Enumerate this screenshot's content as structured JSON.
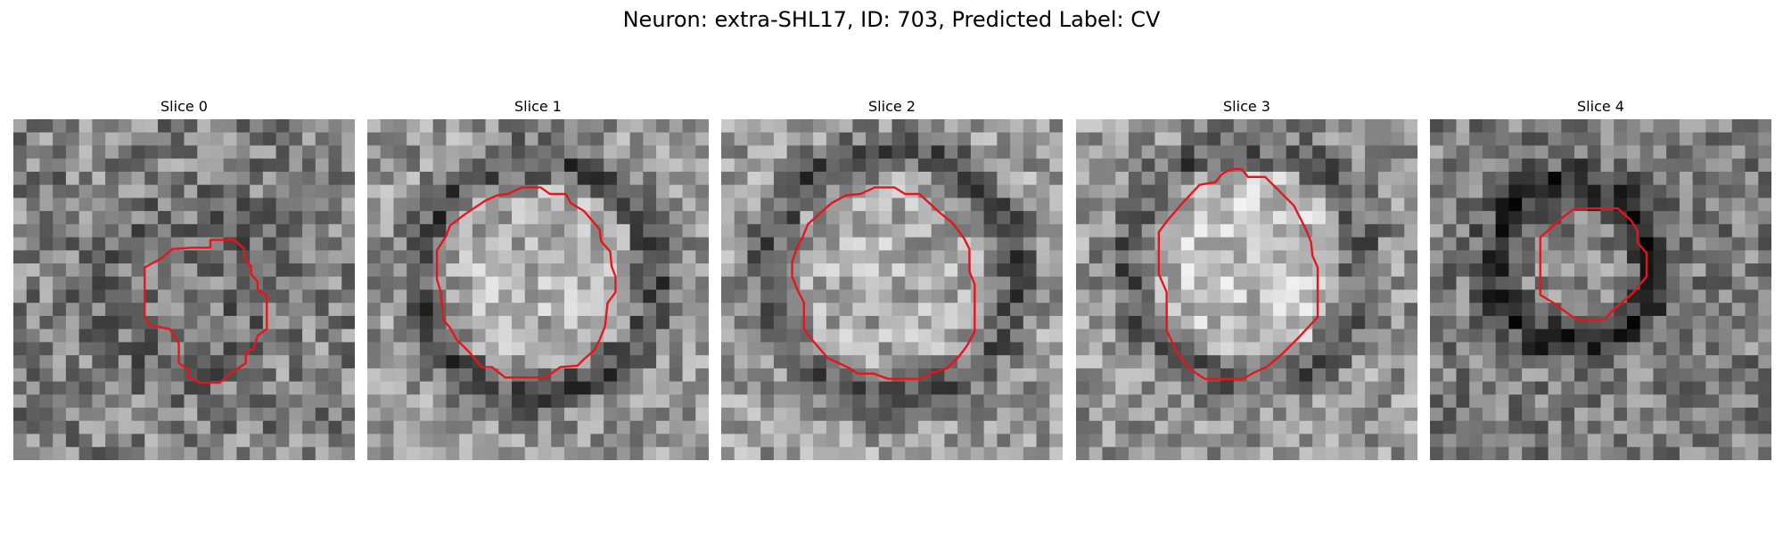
{
  "figure": {
    "title": "Neuron: extra-SHL17, ID: 703, Predicted Label: CV"
  },
  "panels": [
    {
      "title": "Slice 0",
      "contour": [
        [
          150,
          98
        ],
        [
          150,
          92
        ],
        [
          168,
          92
        ],
        [
          176,
          99
        ],
        [
          176,
          106
        ],
        [
          181,
          112
        ],
        [
          181,
          118
        ],
        [
          186,
          124
        ],
        [
          186,
          130
        ],
        [
          193,
          134
        ],
        [
          193,
          160
        ],
        [
          186,
          165
        ],
        [
          183,
          175
        ],
        [
          177,
          178
        ],
        [
          177,
          186
        ],
        [
          165,
          194
        ],
        [
          157,
          201
        ],
        [
          142,
          201
        ],
        [
          133,
          196
        ],
        [
          133,
          191
        ],
        [
          126,
          186
        ],
        [
          126,
          171
        ],
        [
          119,
          160
        ],
        [
          104,
          157
        ],
        [
          100,
          151
        ],
        [
          100,
          113
        ],
        [
          113,
          106
        ],
        [
          121,
          99
        ],
        [
          136,
          98
        ]
      ]
    },
    {
      "title": "Slice 1",
      "contour": [
        [
          107,
          57
        ],
        [
          118,
          52
        ],
        [
          132,
          52
        ],
        [
          139,
          57
        ],
        [
          151,
          57
        ],
        [
          155,
          64
        ],
        [
          165,
          70
        ],
        [
          177,
          84
        ],
        [
          178,
          93
        ],
        [
          185,
          101
        ],
        [
          186,
          112
        ],
        [
          189,
          120
        ],
        [
          189,
          132
        ],
        [
          183,
          140
        ],
        [
          181,
          158
        ],
        [
          177,
          168
        ],
        [
          173,
          176
        ],
        [
          165,
          183
        ],
        [
          160,
          188
        ],
        [
          147,
          189
        ],
        [
          136,
          197
        ],
        [
          105,
          197
        ],
        [
          95,
          189
        ],
        [
          87,
          189
        ],
        [
          78,
          178
        ],
        [
          68,
          168
        ],
        [
          63,
          159
        ],
        [
          58,
          153
        ],
        [
          56,
          132
        ],
        [
          53,
          122
        ],
        [
          53,
          100
        ],
        [
          60,
          89
        ],
        [
          63,
          81
        ],
        [
          75,
          72
        ],
        [
          90,
          62
        ],
        [
          99,
          58
        ]
      ]
    },
    {
      "title": "Slice 2",
      "contour": [
        [
          106,
          57
        ],
        [
          117,
          52
        ],
        [
          132,
          52
        ],
        [
          140,
          57
        ],
        [
          151,
          57
        ],
        [
          165,
          70
        ],
        [
          176,
          79
        ],
        [
          185,
          91
        ],
        [
          189,
          99
        ],
        [
          189,
          116
        ],
        [
          193,
          126
        ],
        [
          193,
          162
        ],
        [
          187,
          173
        ],
        [
          181,
          181
        ],
        [
          172,
          190
        ],
        [
          159,
          194
        ],
        [
          151,
          198
        ],
        [
          127,
          198
        ],
        [
          116,
          194
        ],
        [
          104,
          194
        ],
        [
          96,
          189
        ],
        [
          81,
          182
        ],
        [
          69,
          168
        ],
        [
          63,
          160
        ],
        [
          63,
          140
        ],
        [
          58,
          130
        ],
        [
          54,
          120
        ],
        [
          54,
          109
        ],
        [
          58,
          97
        ],
        [
          62,
          90
        ],
        [
          66,
          80
        ],
        [
          75,
          72
        ],
        [
          84,
          64
        ],
        [
          95,
          58
        ]
      ]
    },
    {
      "title": "Slice 3",
      "contour": [
        [
          111,
          42
        ],
        [
          118,
          38
        ],
        [
          126,
          38
        ],
        [
          131,
          44
        ],
        [
          144,
          44
        ],
        [
          166,
          66
        ],
        [
          171,
          76
        ],
        [
          176,
          86
        ],
        [
          179,
          94
        ],
        [
          180,
          104
        ],
        [
          184,
          113
        ],
        [
          184,
          151
        ],
        [
          168,
          168
        ],
        [
          157,
          179
        ],
        [
          145,
          189
        ],
        [
          136,
          193
        ],
        [
          127,
          198
        ],
        [
          98,
          198
        ],
        [
          86,
          190
        ],
        [
          77,
          178
        ],
        [
          69,
          161
        ],
        [
          69,
          132
        ],
        [
          63,
          118
        ],
        [
          63,
          103
        ],
        [
          63,
          86
        ],
        [
          69,
          78
        ],
        [
          81,
          64
        ],
        [
          94,
          50
        ],
        [
          106,
          48
        ]
      ]
    },
    {
      "title": "Slice 4",
      "contour": [
        [
          131,
          68
        ],
        [
          143,
          68
        ],
        [
          153,
          77
        ],
        [
          158,
          85
        ],
        [
          158,
          94
        ],
        [
          165,
          102
        ],
        [
          165,
          120
        ],
        [
          154,
          133
        ],
        [
          139,
          146
        ],
        [
          133,
          153
        ],
        [
          112,
          153
        ],
        [
          102,
          146
        ],
        [
          94,
          140
        ],
        [
          84,
          134
        ],
        [
          84,
          110
        ],
        [
          84,
          90
        ],
        [
          92,
          83
        ],
        [
          101,
          75
        ],
        [
          110,
          68
        ]
      ]
    }
  ]
}
